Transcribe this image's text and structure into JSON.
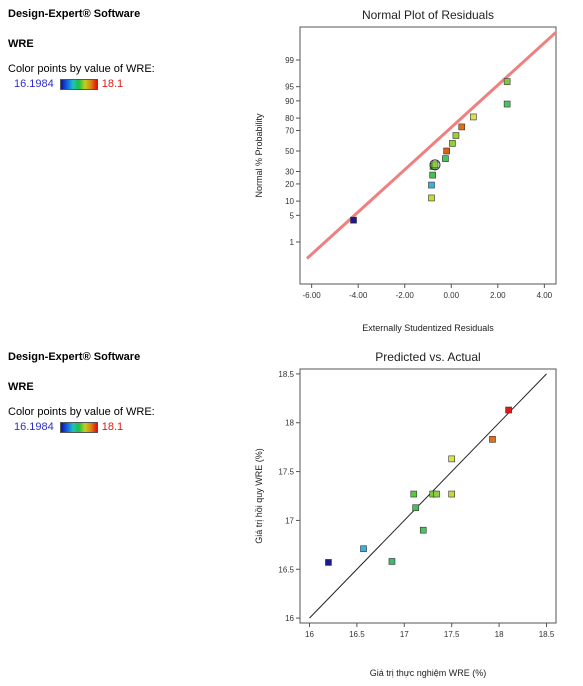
{
  "panels": [
    {
      "brand": "Design-Expert® Software",
      "response": "WRE",
      "color_note": "Color points by value of WRE:",
      "scale_low": "16.1984",
      "scale_high": "18.1"
    },
    {
      "brand": "Design-Expert® Software",
      "response": "WRE",
      "color_note": "Color points by value of WRE:",
      "scale_low": "16.1984",
      "scale_high": "18.1"
    }
  ],
  "chart_data": [
    {
      "type": "scatter",
      "title": "Normal Plot of Residuals",
      "xlabel": "Externally Studentized Residuals",
      "ylabel": "Normal % Probability",
      "xlim": [
        -6.5,
        4.5
      ],
      "x_ticks": [
        "-6.00",
        "-4.00",
        "-2.00",
        "0.00",
        "2.00",
        "4.00"
      ],
      "x_tick_values": [
        -6,
        -4,
        -2,
        0,
        2,
        4
      ],
      "y_ticks": [
        "1",
        "5",
        "10",
        "20",
        "30",
        "50",
        "70",
        "80",
        "90",
        "95",
        "99"
      ],
      "y_tick_values": [
        1,
        5,
        10,
        20,
        30,
        50,
        70,
        80,
        90,
        95,
        99
      ],
      "y_scale": "normal-probability",
      "reference_line_color": "#f08080",
      "points": [
        {
          "x": -4.2,
          "y": 3.85,
          "color": "#1a1a8c"
        },
        {
          "x": -0.85,
          "y": 11.5,
          "color": "#c8d838"
        },
        {
          "x": -0.85,
          "y": 19.2,
          "color": "#3cb0d8"
        },
        {
          "x": -0.8,
          "y": 26.9,
          "color": "#48c050"
        },
        {
          "x": -0.78,
          "y": 34.6,
          "color": "#58c840"
        },
        {
          "x": -0.7,
          "y": 36.2,
          "color": "#88d040"
        },
        {
          "x": -0.25,
          "y": 42.3,
          "color": "#4cc060"
        },
        {
          "x": -0.2,
          "y": 50.0,
          "color": "#d86018"
        },
        {
          "x": 0.05,
          "y": 57.7,
          "color": "#90d030"
        },
        {
          "x": 0.2,
          "y": 65.4,
          "color": "#a0d030"
        },
        {
          "x": 0.45,
          "y": 73.1,
          "color": "#e07018"
        },
        {
          "x": 0.95,
          "y": 80.8,
          "color": "#d8e050"
        },
        {
          "x": 2.4,
          "y": 88.5,
          "color": "#50c060"
        },
        {
          "x": 2.4,
          "y": 96.2,
          "color": "#80c840"
        }
      ]
    },
    {
      "type": "scatter",
      "title": "Predicted vs. Actual",
      "xlabel": "Giá trị thực nghiệm WRE (%)",
      "ylabel": "Giá trị hồi quy WRE (%)",
      "xlim": [
        15.9,
        18.6
      ],
      "ylim": [
        15.95,
        18.55
      ],
      "x_ticks": [
        "16",
        "16.5",
        "17",
        "17.5",
        "18",
        "18.5"
      ],
      "x_tick_values": [
        16,
        16.5,
        17,
        17.5,
        18,
        18.5
      ],
      "y_ticks": [
        "16",
        "16.5",
        "17",
        "17.5",
        "18",
        "18.5"
      ],
      "y_tick_values": [
        16,
        16.5,
        17,
        17.5,
        18,
        18.5
      ],
      "reference_line": [
        [
          16,
          16
        ],
        [
          18.5,
          18.5
        ]
      ],
      "points": [
        {
          "x": 16.2,
          "y": 16.57,
          "color": "#1a1a8c"
        },
        {
          "x": 16.57,
          "y": 16.71,
          "color": "#3cb0d8"
        },
        {
          "x": 16.87,
          "y": 16.58,
          "color": "#40b870"
        },
        {
          "x": 17.1,
          "y": 17.27,
          "color": "#58c840"
        },
        {
          "x": 17.12,
          "y": 17.13,
          "color": "#48c050"
        },
        {
          "x": 17.2,
          "y": 16.9,
          "color": "#50c060"
        },
        {
          "x": 17.3,
          "y": 17.27,
          "color": "#80c840"
        },
        {
          "x": 17.34,
          "y": 17.27,
          "color": "#88d040"
        },
        {
          "x": 17.5,
          "y": 17.27,
          "color": "#c8d838"
        },
        {
          "x": 17.5,
          "y": 17.63,
          "color": "#d8e050"
        },
        {
          "x": 17.93,
          "y": 17.83,
          "color": "#e07018"
        },
        {
          "x": 18.1,
          "y": 18.13,
          "color": "#e01818"
        }
      ]
    }
  ]
}
